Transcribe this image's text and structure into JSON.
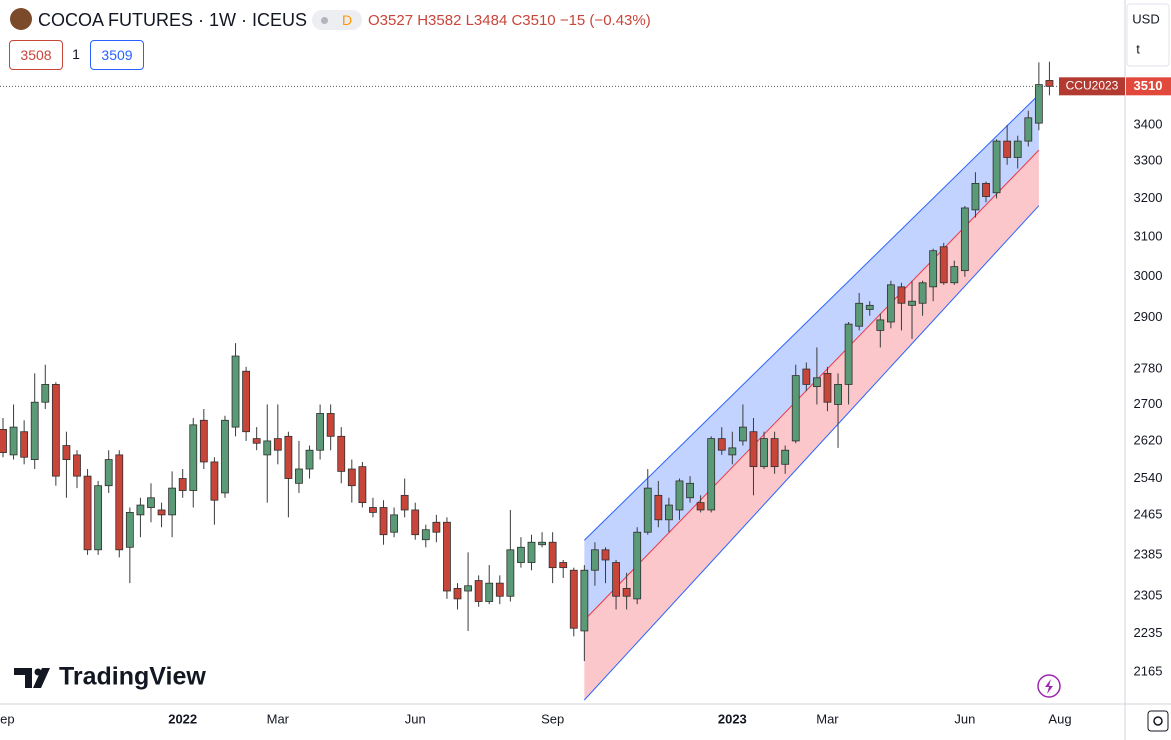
{
  "header": {
    "title": "COCOA FUTURES · 1W · ICEUS",
    "badge": "D",
    "ohlc": "O3527 H3582 L3484 C3510 −15 (−0.43%)",
    "bid": "3508",
    "qty": "1",
    "ask": "3509",
    "currency": "USD",
    "unit": "t",
    "logo": "TradingView"
  },
  "chart_data": {
    "type": "candlestick",
    "log_scale": true,
    "grid": true,
    "last_label": "CCU2023",
    "categories": [
      "Sep",
      null,
      null,
      null,
      null,
      null,
      null,
      null,
      null,
      null,
      null,
      null,
      null,
      null,
      null,
      null,
      null,
      "2022",
      null,
      null,
      null,
      null,
      null,
      null,
      null,
      null,
      "Mar",
      null,
      null,
      null,
      null,
      null,
      null,
      null,
      null,
      null,
      null,
      null,
      null,
      "Jun",
      null,
      null,
      null,
      null,
      null,
      null,
      null,
      null,
      null,
      null,
      null,
      null,
      "Sep",
      null,
      null,
      null,
      null,
      null,
      null,
      null,
      null,
      null,
      null,
      null,
      null,
      null,
      null,
      null,
      null,
      "2023",
      null,
      null,
      null,
      null,
      null,
      null,
      null,
      null,
      "Mar",
      null,
      null,
      null,
      null,
      null,
      null,
      null,
      null,
      null,
      null,
      null,
      null,
      "Jun",
      null,
      null,
      null,
      null,
      null,
      null,
      null,
      null,
      "Aug"
    ],
    "open": [
      2645,
      2590,
      2640,
      2580,
      2705,
      2745,
      2610,
      2590,
      2545,
      2395,
      2525,
      2590,
      2400,
      2465,
      2480,
      2475,
      2465,
      2540,
      2515,
      2665,
      2575,
      2510,
      2650,
      2775,
      2625,
      2590,
      2625,
      2630,
      2530,
      2560,
      2600,
      2680,
      2630,
      2560,
      2565,
      2480,
      2480,
      2430,
      2505,
      2475,
      2415,
      2450,
      2450,
      2320,
      2315,
      2335,
      2295,
      2330,
      2305,
      2370,
      2370,
      2405,
      2410,
      2370,
      2355,
      2240,
      2355,
      2395,
      2370,
      2320,
      2300,
      2430,
      2505,
      2455,
      2475,
      2500,
      2490,
      2475,
      2625,
      2590,
      2620,
      2640,
      2565,
      2625,
      2570,
      2620,
      2780,
      2740,
      2770,
      2700,
      2745,
      2880,
      2920,
      2870,
      2890,
      2975,
      2930,
      2935,
      2975,
      3075,
      2985,
      3015,
      3170,
      3240,
      3215,
      3355,
      3310,
      3355,
      3405,
      3527,
      null
    ],
    "high": [
      2670,
      2700,
      2665,
      2770,
      2790,
      2750,
      2640,
      2600,
      2560,
      2535,
      2600,
      2600,
      2480,
      2500,
      2530,
      2490,
      2555,
      2560,
      2670,
      2690,
      2585,
      2675,
      2840,
      2785,
      2650,
      2700,
      2700,
      2640,
      2620,
      2610,
      2700,
      2700,
      2650,
      2580,
      2575,
      2500,
      2495,
      2480,
      2540,
      2490,
      2445,
      2465,
      2460,
      2330,
      2390,
      2345,
      2365,
      2345,
      2475,
      2420,
      2425,
      2430,
      2430,
      2375,
      2360,
      2365,
      2410,
      2400,
      2375,
      2350,
      2440,
      2560,
      2535,
      2500,
      2540,
      2545,
      2505,
      2630,
      2650,
      2640,
      2700,
      2670,
      2640,
      2640,
      2610,
      2790,
      2795,
      2830,
      2785,
      2770,
      2890,
      2960,
      2940,
      2910,
      2990,
      2985,
      2990,
      2990,
      3070,
      3085,
      3040,
      3180,
      3270,
      3245,
      3360,
      3400,
      3370,
      3440,
      3580,
      3582,
      null
    ],
    "low": [
      2585,
      2580,
      2570,
      2560,
      2690,
      2525,
      2500,
      2520,
      2385,
      2385,
      2510,
      2380,
      2330,
      2420,
      2450,
      2440,
      2420,
      2500,
      2480,
      2560,
      2445,
      2500,
      2630,
      2620,
      2600,
      2490,
      2570,
      2460,
      2510,
      2540,
      2580,
      2600,
      2530,
      2490,
      2480,
      2460,
      2405,
      2420,
      2460,
      2415,
      2400,
      2410,
      2300,
      2280,
      2240,
      2285,
      2290,
      2290,
      2295,
      2360,
      2355,
      2400,
      2330,
      2340,
      2230,
      2185,
      2325,
      2330,
      2280,
      2280,
      2290,
      2425,
      2440,
      2430,
      2455,
      2490,
      2470,
      2470,
      2590,
      2570,
      2610,
      2505,
      2560,
      2550,
      2550,
      2615,
      2730,
      2700,
      2685,
      2605,
      2700,
      2870,
      2905,
      2830,
      2875,
      2870,
      2850,
      2905,
      2940,
      2980,
      2980,
      3000,
      3150,
      3190,
      3200,
      3290,
      3280,
      3340,
      3385,
      3484,
      null
    ],
    "close": [
      2595,
      2650,
      2585,
      2705,
      2745,
      2545,
      2580,
      2545,
      2395,
      2525,
      2580,
      2395,
      2470,
      2485,
      2500,
      2465,
      2520,
      2515,
      2655,
      2575,
      2495,
      2665,
      2810,
      2640,
      2615,
      2620,
      2600,
      2540,
      2560,
      2600,
      2680,
      2630,
      2555,
      2525,
      2490,
      2470,
      2425,
      2465,
      2475,
      2425,
      2435,
      2430,
      2315,
      2300,
      2325,
      2295,
      2330,
      2305,
      2395,
      2400,
      2410,
      2410,
      2360,
      2360,
      2245,
      2355,
      2395,
      2375,
      2305,
      2305,
      2430,
      2520,
      2455,
      2485,
      2535,
      2530,
      2475,
      2625,
      2600,
      2605,
      2650,
      2565,
      2625,
      2565,
      2600,
      2765,
      2745,
      2760,
      2705,
      2745,
      2885,
      2935,
      2930,
      2895,
      2980,
      2935,
      2940,
      2985,
      3065,
      2985,
      3025,
      3175,
      3240,
      3205,
      3355,
      3310,
      3355,
      3420,
      3515,
      3510,
      null
    ],
    "up_color": "#5b9a76",
    "down_color": "#c8453a",
    "channel": {
      "upper": [
        2414,
        3486
      ],
      "middle": [
        2260,
        3330
      ],
      "lower": [
        2116,
        3181
      ]
    },
    "ylim": [
      2109,
      3769
    ],
    "yticks": [
      2165,
      2235,
      2305,
      2385,
      2465,
      2540,
      2620,
      2700,
      2780,
      2900,
      3000,
      3100,
      3200,
      3300,
      3400
    ]
  }
}
